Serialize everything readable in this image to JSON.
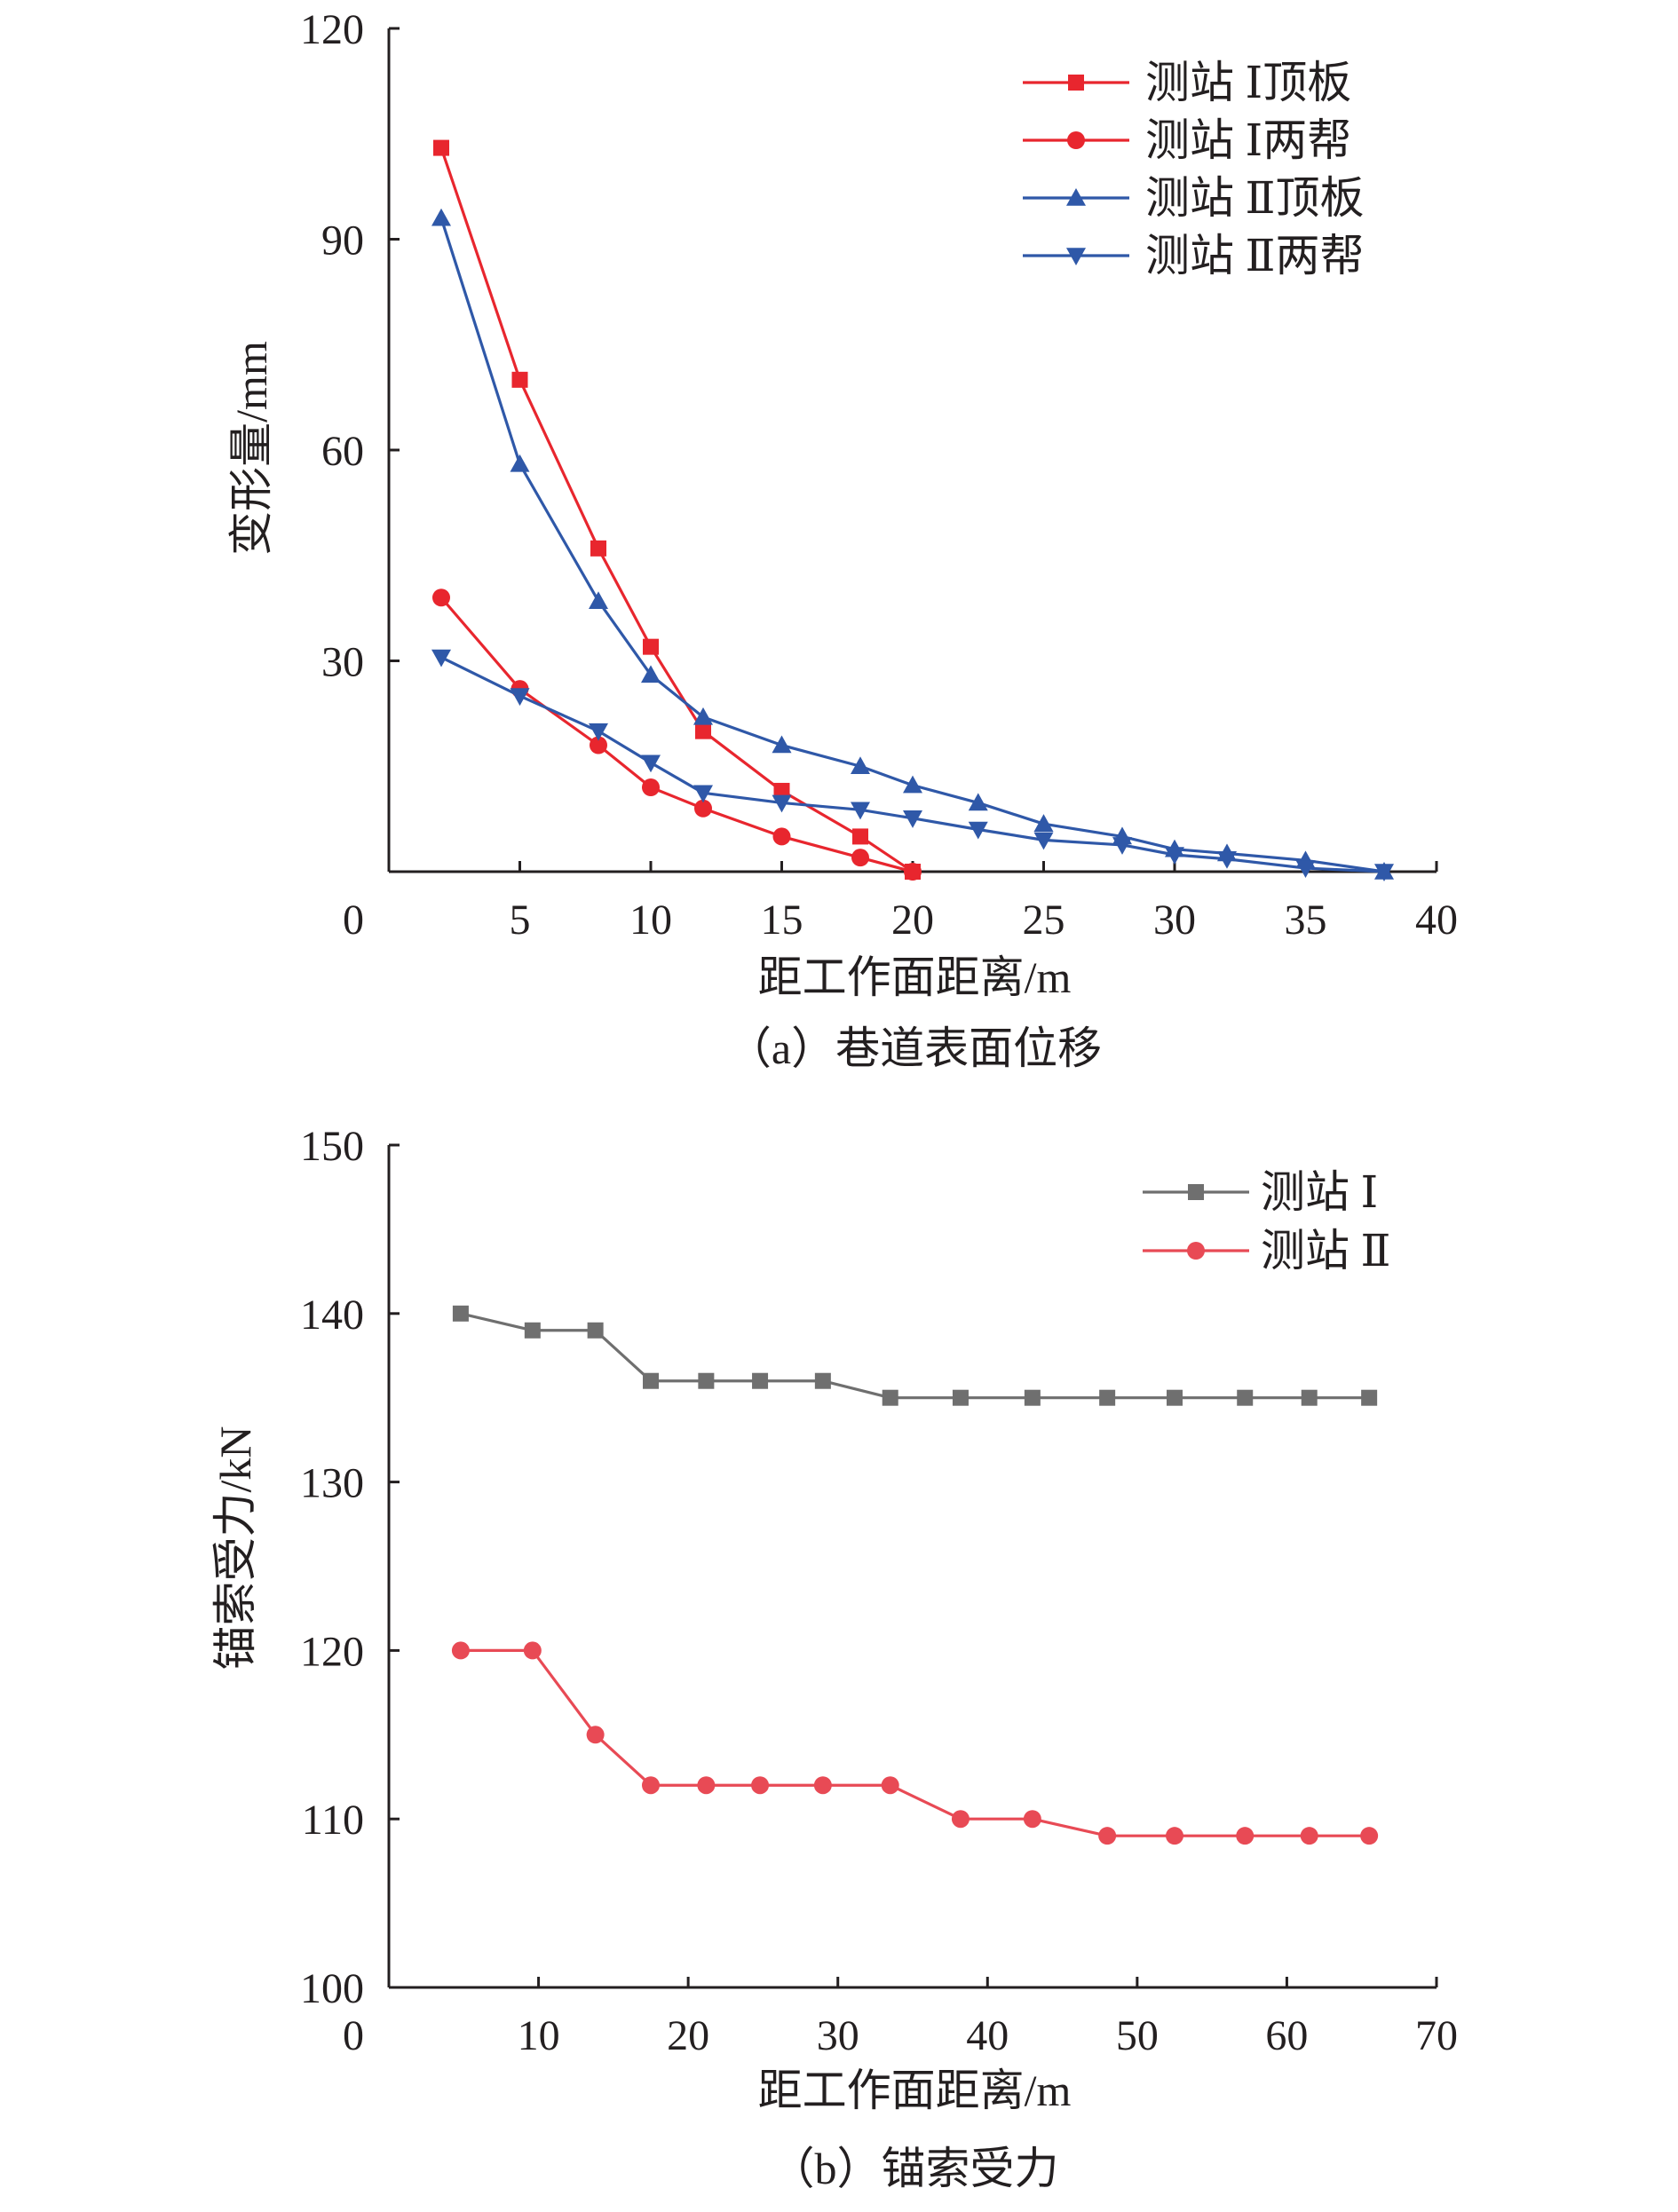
{
  "colors": {
    "red": "#e8262e",
    "blue": "#2f58a8",
    "gray": "#6f6f6f",
    "pink_red": "#e84a55",
    "axis": "#231f20"
  },
  "chart_data": [
    {
      "type": "line",
      "caption": "（a）巷道表面位移",
      "xlabel": "距工作面距离/m",
      "ylabel": "变形量/mm",
      "xlim": [
        0,
        40
      ],
      "ylim": [
        0,
        120
      ],
      "x_ticks": [
        0,
        5,
        10,
        15,
        20,
        25,
        30,
        35,
        40
      ],
      "y_ticks": [
        0,
        30,
        60,
        90,
        120
      ],
      "legend_position": "top-right",
      "grid": false,
      "series": [
        {
          "name": "测站 Ⅰ顶板",
          "marker": "square",
          "color": "#e8262e",
          "x": [
            2,
            5,
            8,
            10,
            12,
            15,
            18,
            20
          ],
          "y": [
            103,
            70,
            46,
            32,
            20,
            11.5,
            5,
            0
          ]
        },
        {
          "name": "测站 Ⅰ两帮",
          "marker": "circle",
          "color": "#e8262e",
          "x": [
            2,
            5,
            8,
            10,
            12,
            15,
            18,
            20
          ],
          "y": [
            39,
            26,
            18,
            12,
            9,
            5,
            2,
            0
          ]
        },
        {
          "name": "测站 Ⅱ顶板",
          "marker": "triangle-up",
          "color": "#2f58a8",
          "x": [
            2,
            5,
            8,
            10,
            12,
            15,
            18,
            20,
            22.5,
            25,
            28,
            30,
            32,
            35,
            38
          ],
          "y": [
            93,
            58,
            38.5,
            28,
            22,
            18,
            15,
            12.3,
            9.8,
            6.8,
            5,
            3.2,
            2.6,
            1.6,
            0
          ]
        },
        {
          "name": "测站 Ⅱ两帮",
          "marker": "triangle-down",
          "color": "#2f58a8",
          "x": [
            2,
            5,
            8,
            10,
            12,
            15,
            18,
            20,
            22.5,
            25,
            28,
            30,
            32,
            35,
            38
          ],
          "y": [
            30.5,
            25,
            20,
            15.5,
            11.2,
            9.8,
            8.8,
            7.6,
            6,
            4.5,
            3.8,
            2.4,
            1.8,
            0.5,
            0
          ]
        }
      ]
    },
    {
      "type": "line",
      "caption": "（b）锚索受力",
      "xlabel": "距工作面距离/m",
      "ylabel": "锚索受力/kN",
      "xlim": [
        0,
        70
      ],
      "ylim": [
        100,
        150
      ],
      "x_ticks": [
        0,
        10,
        20,
        30,
        40,
        50,
        60,
        70
      ],
      "y_ticks": [
        100,
        110,
        120,
        130,
        140,
        150
      ],
      "legend_position": "top-right",
      "grid": false,
      "series": [
        {
          "name": "测站 Ⅰ",
          "marker": "square",
          "color": "#6f6f6f",
          "x": [
            4.8,
            9.6,
            13.8,
            17.5,
            21.2,
            24.8,
            29,
            33.5,
            38.2,
            43,
            48,
            52.5,
            57.2,
            61.5,
            65.5
          ],
          "y": [
            140,
            139,
            139,
            136,
            136,
            136,
            136,
            135,
            135,
            135,
            135,
            135,
            135,
            135,
            135
          ]
        },
        {
          "name": "测站 Ⅱ",
          "marker": "circle",
          "color": "#e84a55",
          "x": [
            4.8,
            9.6,
            13.8,
            17.5,
            21.2,
            24.8,
            29,
            33.5,
            38.2,
            43,
            48,
            52.5,
            57.2,
            61.5,
            65.5
          ],
          "y": [
            120,
            120,
            115,
            112,
            112,
            112,
            112,
            112,
            110,
            110,
            109,
            109,
            109,
            109,
            109
          ]
        }
      ]
    }
  ]
}
